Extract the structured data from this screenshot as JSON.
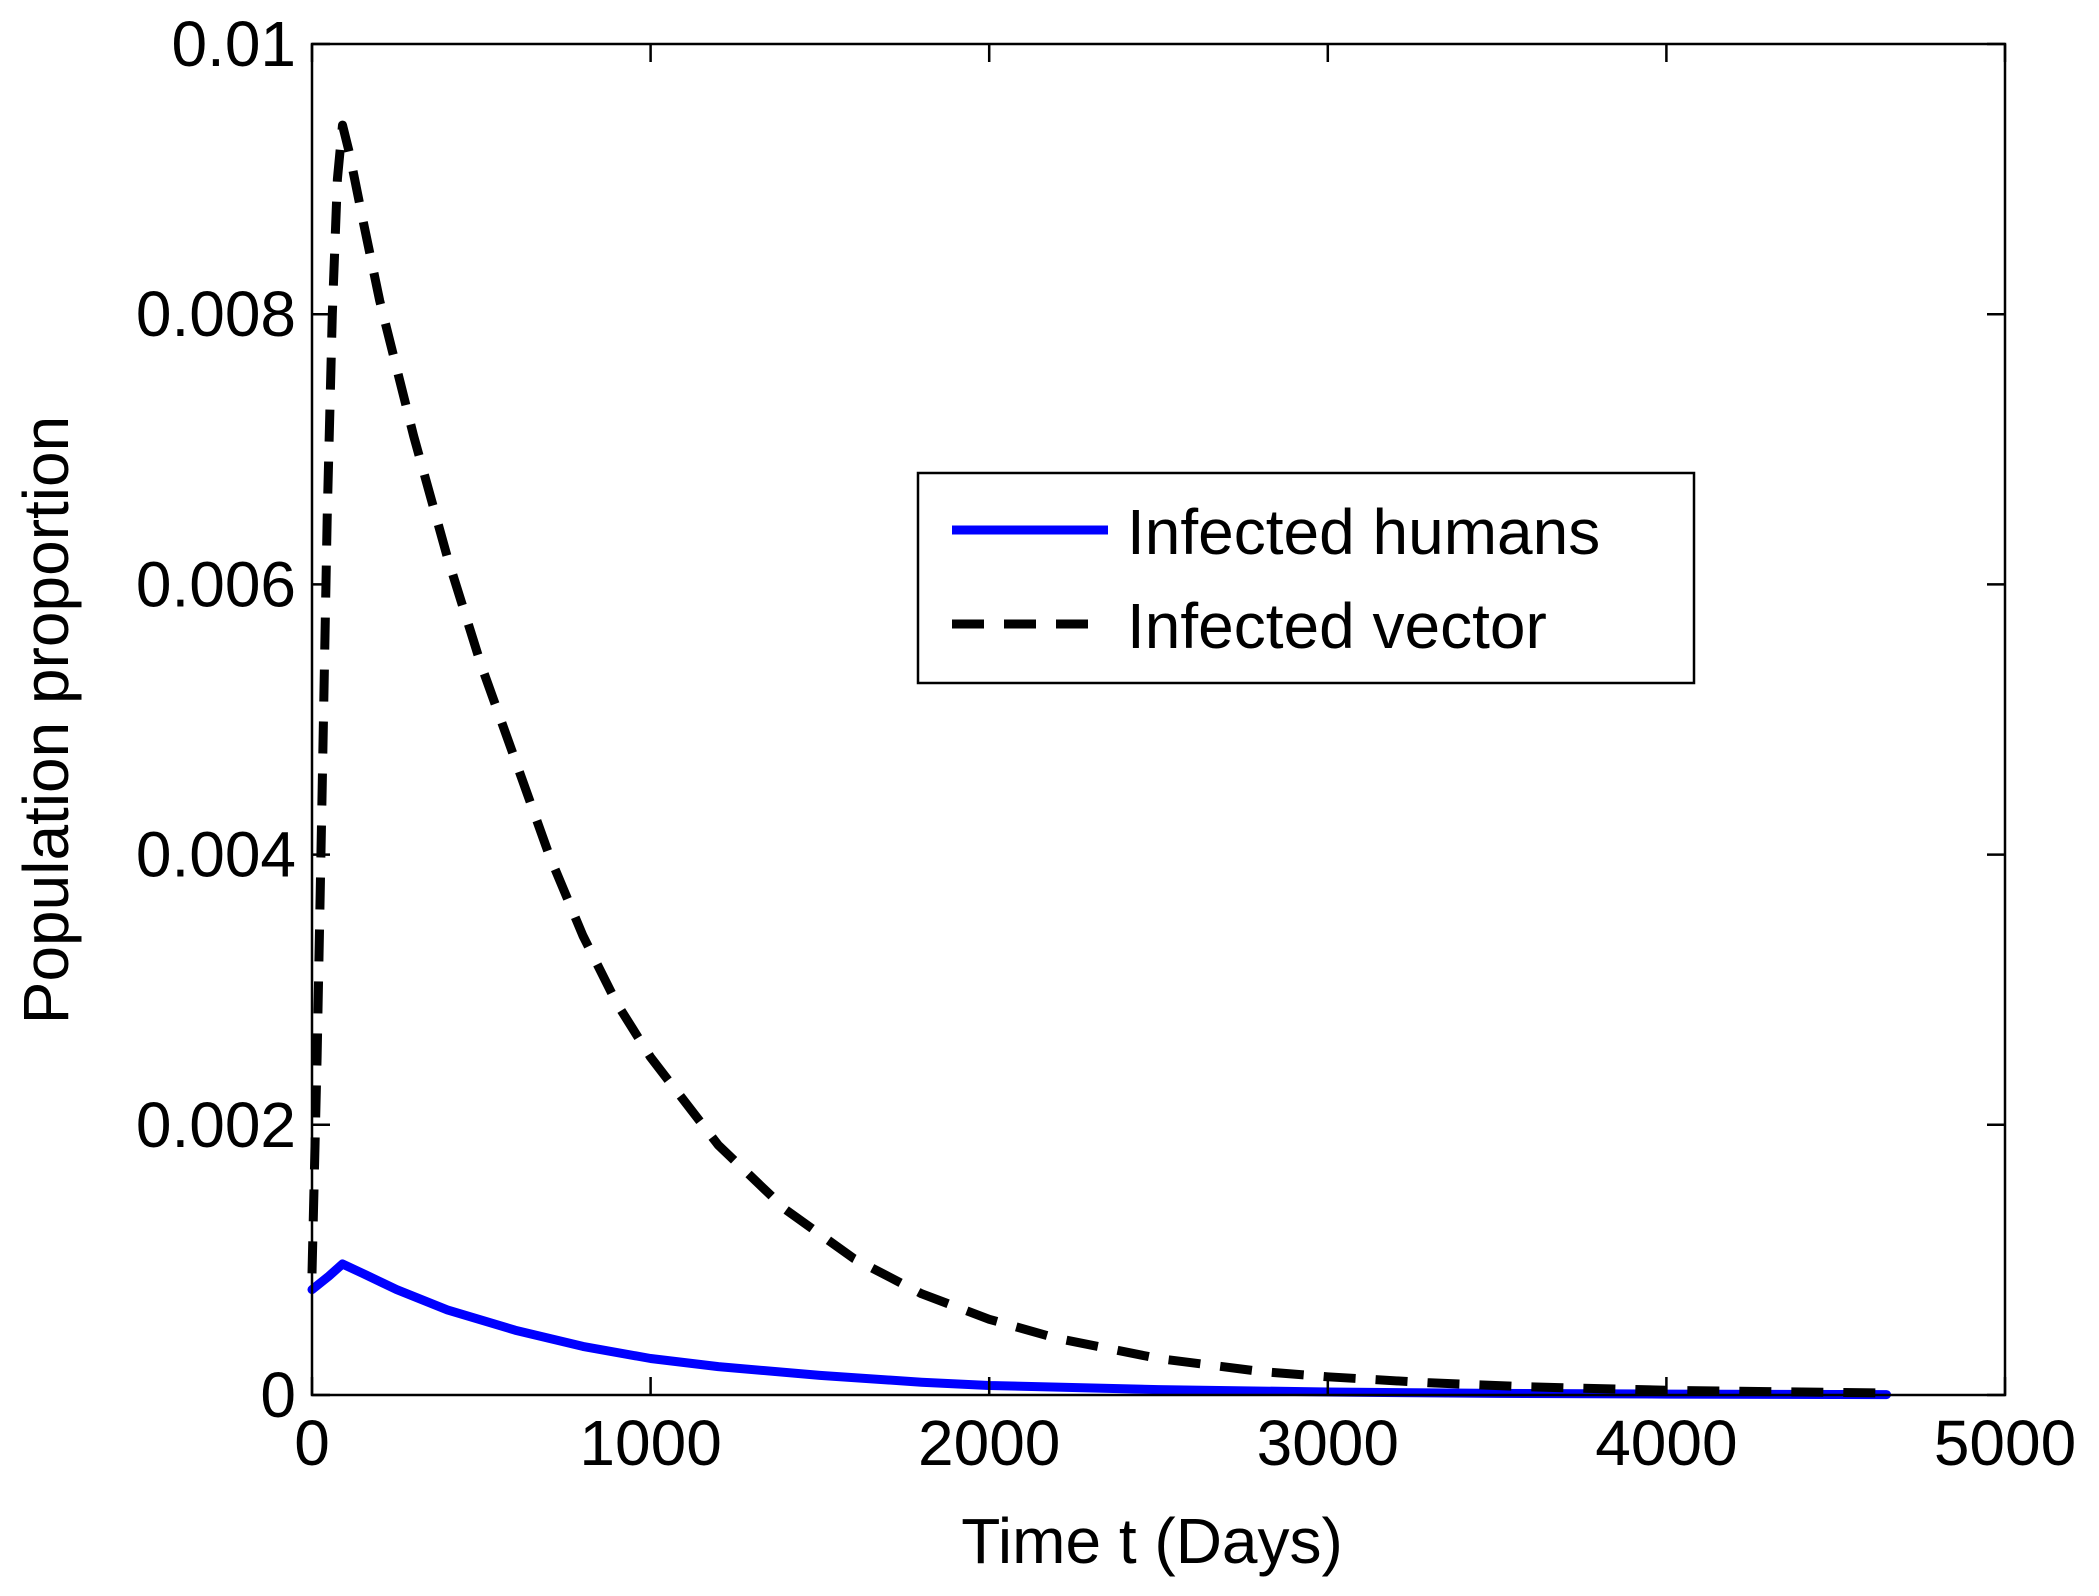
{
  "chart_data": {
    "type": "line",
    "xlabel": "Time t (Days)",
    "ylabel": "Population proportion",
    "xlim": [
      0,
      5000
    ],
    "ylim": [
      0,
      0.01
    ],
    "x_ticks": [
      0,
      1000,
      2000,
      3000,
      4000,
      5000
    ],
    "x_tick_labels": [
      "0",
      "1000",
      "2000",
      "3000",
      "4000",
      "5000"
    ],
    "y_ticks": [
      0,
      0.002,
      0.004,
      0.006,
      0.008,
      0.01
    ],
    "y_tick_labels": [
      "0",
      "0.002",
      "0.004",
      "0.006",
      "0.008",
      "0.01"
    ],
    "grid": false,
    "legend_position": "upper-center-right",
    "series": [
      {
        "name": "Infected humans",
        "color": "#0000ff",
        "style": "solid",
        "x": [
          0,
          50,
          90,
          150,
          250,
          400,
          600,
          800,
          1000,
          1200,
          1500,
          1800,
          2000,
          2500,
          3000,
          3500,
          4000,
          4500,
          4650
        ],
        "y": [
          0.00078,
          0.00088,
          0.00097,
          0.0009,
          0.00078,
          0.00063,
          0.00048,
          0.00036,
          0.00027,
          0.00021,
          0.000145,
          9.5e-05,
          7e-05,
          4e-05,
          2.2e-05,
          1.2e-05,
          7e-06,
          4e-06,
          3e-06
        ]
      },
      {
        "name": "Infected vector",
        "color": "#000000",
        "style": "dashed",
        "x": [
          0,
          15,
          30,
          45,
          60,
          75,
          90,
          110,
          150,
          200,
          300,
          400,
          500,
          600,
          700,
          800,
          900,
          1000,
          1200,
          1400,
          1600,
          1800,
          2000,
          2200,
          2500,
          2800,
          3000,
          3300,
          3600,
          4000,
          4300,
          4650
        ],
        "y": [
          0.0009,
          0.0025,
          0.0045,
          0.0065,
          0.008,
          0.009,
          0.0094,
          0.0092,
          0.0087,
          0.0081,
          0.0071,
          0.0062,
          0.0054,
          0.0047,
          0.004,
          0.0034,
          0.0029,
          0.0025,
          0.00185,
          0.00137,
          0.00101,
          0.00075,
          0.00056,
          0.00042,
          0.00027,
          0.000175,
          0.000135,
          9e-05,
          6e-05,
          3.5e-05,
          2.5e-05,
          1.5e-05
        ]
      }
    ]
  }
}
